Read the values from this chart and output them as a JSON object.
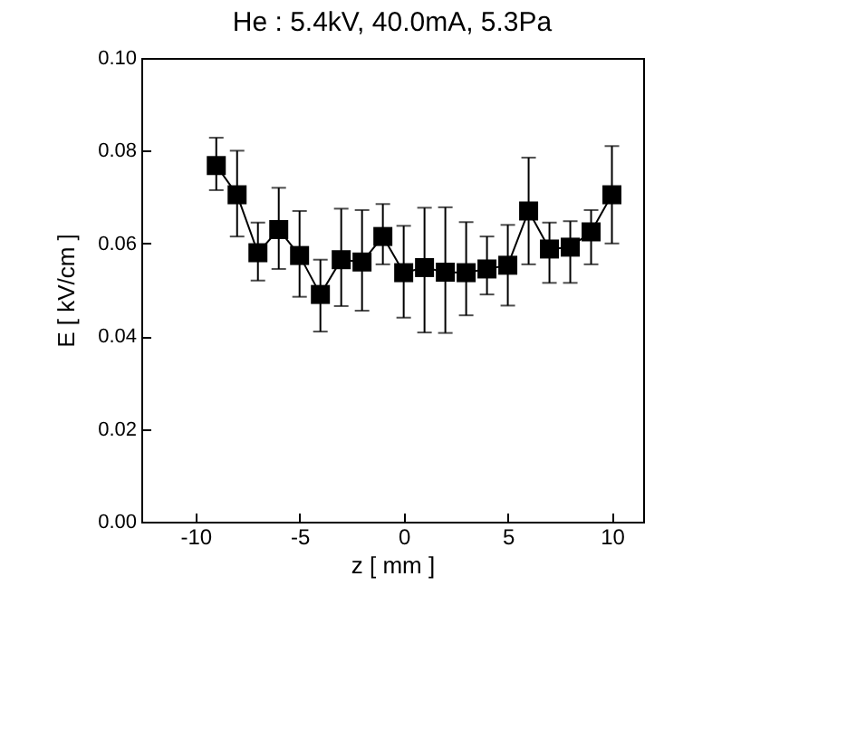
{
  "chart_data": {
    "type": "line",
    "title": "He : 5.4kV, 40.0mA, 5.3Pa",
    "xlabel": "z [ mm ]",
    "ylabel": "E [ kV/cm ]",
    "x": [
      -9,
      -8,
      -7,
      -6,
      -5,
      -4,
      -3,
      -2,
      -1,
      0,
      1,
      2,
      3,
      4,
      5,
      6,
      7,
      8,
      9,
      10
    ],
    "series": [
      {
        "color": "#000000",
        "values": [
          0.0768,
          0.0705,
          0.058,
          0.063,
          0.0574,
          0.049,
          0.0565,
          0.056,
          0.0615,
          0.0537,
          0.0548,
          0.0538,
          0.0537,
          0.0545,
          0.0553,
          0.067,
          0.0588,
          0.0592,
          0.0625,
          0.0705
        ],
        "errors": [
          [
            0.0715,
            0.0828
          ],
          [
            0.0615,
            0.08
          ],
          [
            0.052,
            0.0645
          ],
          [
            0.0545,
            0.072
          ],
          [
            0.0485,
            0.067
          ],
          [
            0.041,
            0.0565
          ],
          [
            0.0465,
            0.0675
          ],
          [
            0.0455,
            0.0672
          ],
          [
            0.0555,
            0.0685
          ],
          [
            0.044,
            0.0638
          ],
          [
            0.0408,
            0.0677
          ],
          [
            0.0407,
            0.0678
          ],
          [
            0.0445,
            0.0646
          ],
          [
            0.049,
            0.0615
          ],
          [
            0.0466,
            0.064
          ],
          [
            0.0555,
            0.0785
          ],
          [
            0.0515,
            0.0645
          ],
          [
            0.0515,
            0.0648
          ],
          [
            0.0555,
            0.0672
          ],
          [
            0.06,
            0.081
          ]
        ]
      }
    ],
    "xlim": [
      -12.6,
      11.5
    ],
    "xticks": [
      -10,
      -5,
      0,
      5,
      10
    ],
    "ylim": [
      0,
      0.1
    ],
    "yticks": [
      {
        "value": 0,
        "label": "0.00"
      },
      {
        "value": 0.02,
        "label": "0.02"
      },
      {
        "value": 0.04,
        "label": "0.04"
      },
      {
        "value": 0.06,
        "label": "0.06"
      },
      {
        "value": 0.08,
        "label": "0.08"
      },
      {
        "value": 0.1,
        "label": "0.10"
      }
    ],
    "marker": "square",
    "line_style": "solid"
  }
}
